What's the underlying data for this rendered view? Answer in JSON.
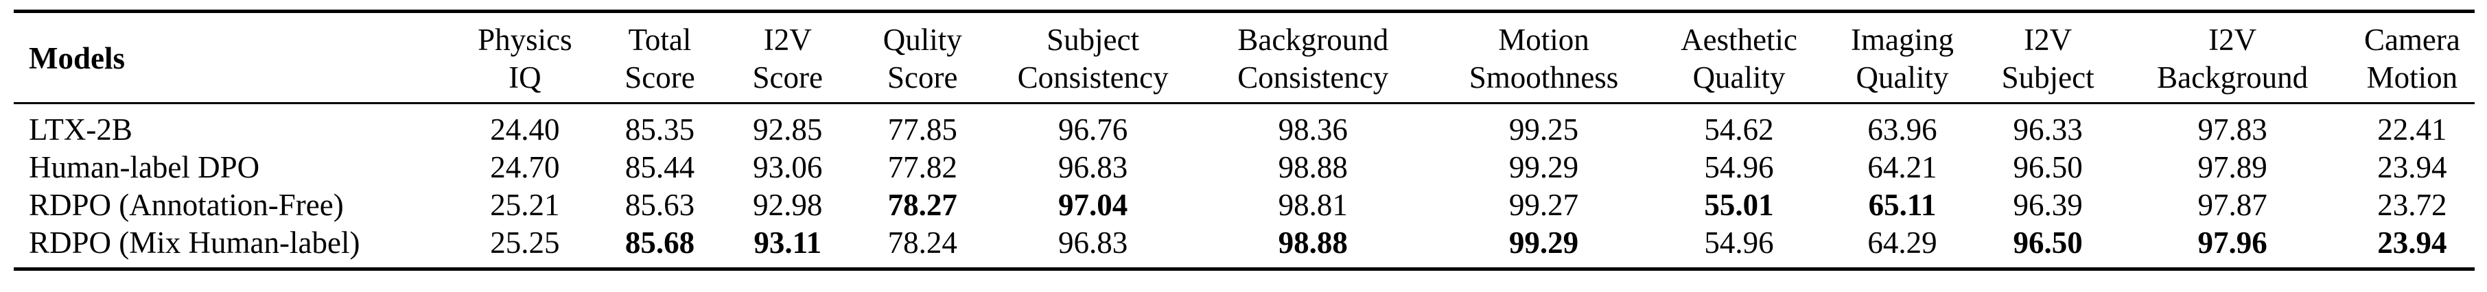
{
  "table": {
    "headers": [
      [
        "Models"
      ],
      [
        "Physics",
        "IQ"
      ],
      [
        "Total",
        "Score"
      ],
      [
        "I2V",
        "Score"
      ],
      [
        "Qulity",
        "Score"
      ],
      [
        "Subject",
        "Consistency"
      ],
      [
        "Background",
        "Consistency"
      ],
      [
        "Motion",
        "Smoothness"
      ],
      [
        "Aesthetic",
        "Quality"
      ],
      [
        "Imaging",
        "Quality"
      ],
      [
        "I2V",
        "Subject"
      ],
      [
        "I2V",
        "Background"
      ],
      [
        "Camera",
        "Motion"
      ]
    ],
    "rows": [
      {
        "model": "LTX-2B",
        "values": [
          "24.40",
          "85.35",
          "92.85",
          "77.85",
          "96.76",
          "98.36",
          "99.25",
          "54.62",
          "63.96",
          "96.33",
          "97.83",
          "22.41"
        ],
        "bold": [
          false,
          false,
          false,
          false,
          false,
          false,
          false,
          false,
          false,
          false,
          false,
          false
        ]
      },
      {
        "model": "Human-label DPO",
        "values": [
          "24.70",
          "85.44",
          "93.06",
          "77.82",
          "96.83",
          "98.88",
          "99.29",
          "54.96",
          "64.21",
          "96.50",
          "97.89",
          "23.94"
        ],
        "bold": [
          false,
          false,
          false,
          false,
          false,
          false,
          false,
          false,
          false,
          false,
          false,
          false
        ]
      },
      {
        "model": "RDPO (Annotation-Free)",
        "values": [
          "25.21",
          "85.63",
          "92.98",
          "78.27",
          "97.04",
          "98.81",
          "99.27",
          "55.01",
          "65.11",
          "96.39",
          "97.87",
          "23.72"
        ],
        "bold": [
          false,
          false,
          false,
          true,
          true,
          false,
          false,
          true,
          true,
          false,
          false,
          false
        ]
      },
      {
        "model": "RDPO (Mix Human-label)",
        "values": [
          "25.25",
          "85.68",
          "93.11",
          "78.24",
          "96.83",
          "98.88",
          "99.29",
          "54.96",
          "64.29",
          "96.50",
          "97.96",
          "23.94"
        ],
        "bold": [
          false,
          true,
          true,
          false,
          false,
          true,
          true,
          false,
          false,
          true,
          true,
          true
        ]
      }
    ]
  }
}
